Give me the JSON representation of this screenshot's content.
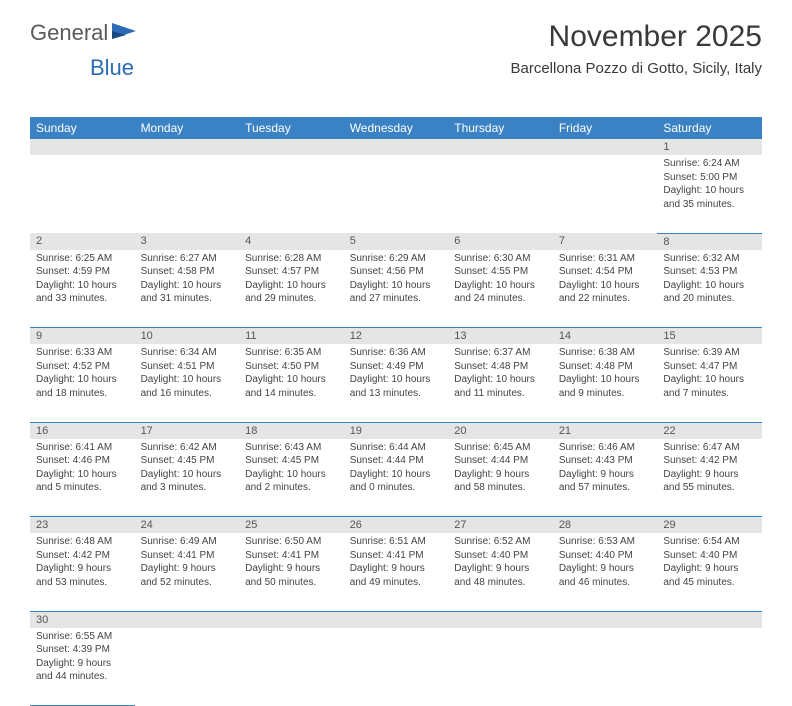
{
  "logo": {
    "text1": "General",
    "text2": "Blue"
  },
  "title": "November 2025",
  "location": "Barcellona Pozzo di Gotto, Sicily, Italy",
  "colors": {
    "header_bg": "#3b82c4",
    "header_text": "#ffffff",
    "daynum_bg": "#e5e5e5",
    "cell_border": "#3b82c4",
    "logo_gray": "#5a5a5a",
    "logo_blue": "#2d6bb5"
  },
  "day_headers": [
    "Sunday",
    "Monday",
    "Tuesday",
    "Wednesday",
    "Thursday",
    "Friday",
    "Saturday"
  ],
  "weeks": [
    [
      null,
      null,
      null,
      null,
      null,
      null,
      {
        "n": "1",
        "sunrise": "6:24 AM",
        "sunset": "5:00 PM",
        "daylight": "10 hours and 35 minutes."
      }
    ],
    [
      {
        "n": "2",
        "sunrise": "6:25 AM",
        "sunset": "4:59 PM",
        "daylight": "10 hours and 33 minutes."
      },
      {
        "n": "3",
        "sunrise": "6:27 AM",
        "sunset": "4:58 PM",
        "daylight": "10 hours and 31 minutes."
      },
      {
        "n": "4",
        "sunrise": "6:28 AM",
        "sunset": "4:57 PM",
        "daylight": "10 hours and 29 minutes."
      },
      {
        "n": "5",
        "sunrise": "6:29 AM",
        "sunset": "4:56 PM",
        "daylight": "10 hours and 27 minutes."
      },
      {
        "n": "6",
        "sunrise": "6:30 AM",
        "sunset": "4:55 PM",
        "daylight": "10 hours and 24 minutes."
      },
      {
        "n": "7",
        "sunrise": "6:31 AM",
        "sunset": "4:54 PM",
        "daylight": "10 hours and 22 minutes."
      },
      {
        "n": "8",
        "sunrise": "6:32 AM",
        "sunset": "4:53 PM",
        "daylight": "10 hours and 20 minutes."
      }
    ],
    [
      {
        "n": "9",
        "sunrise": "6:33 AM",
        "sunset": "4:52 PM",
        "daylight": "10 hours and 18 minutes."
      },
      {
        "n": "10",
        "sunrise": "6:34 AM",
        "sunset": "4:51 PM",
        "daylight": "10 hours and 16 minutes."
      },
      {
        "n": "11",
        "sunrise": "6:35 AM",
        "sunset": "4:50 PM",
        "daylight": "10 hours and 14 minutes."
      },
      {
        "n": "12",
        "sunrise": "6:36 AM",
        "sunset": "4:49 PM",
        "daylight": "10 hours and 13 minutes."
      },
      {
        "n": "13",
        "sunrise": "6:37 AM",
        "sunset": "4:48 PM",
        "daylight": "10 hours and 11 minutes."
      },
      {
        "n": "14",
        "sunrise": "6:38 AM",
        "sunset": "4:48 PM",
        "daylight": "10 hours and 9 minutes."
      },
      {
        "n": "15",
        "sunrise": "6:39 AM",
        "sunset": "4:47 PM",
        "daylight": "10 hours and 7 minutes."
      }
    ],
    [
      {
        "n": "16",
        "sunrise": "6:41 AM",
        "sunset": "4:46 PM",
        "daylight": "10 hours and 5 minutes."
      },
      {
        "n": "17",
        "sunrise": "6:42 AM",
        "sunset": "4:45 PM",
        "daylight": "10 hours and 3 minutes."
      },
      {
        "n": "18",
        "sunrise": "6:43 AM",
        "sunset": "4:45 PM",
        "daylight": "10 hours and 2 minutes."
      },
      {
        "n": "19",
        "sunrise": "6:44 AM",
        "sunset": "4:44 PM",
        "daylight": "10 hours and 0 minutes."
      },
      {
        "n": "20",
        "sunrise": "6:45 AM",
        "sunset": "4:44 PM",
        "daylight": "9 hours and 58 minutes."
      },
      {
        "n": "21",
        "sunrise": "6:46 AM",
        "sunset": "4:43 PM",
        "daylight": "9 hours and 57 minutes."
      },
      {
        "n": "22",
        "sunrise": "6:47 AM",
        "sunset": "4:42 PM",
        "daylight": "9 hours and 55 minutes."
      }
    ],
    [
      {
        "n": "23",
        "sunrise": "6:48 AM",
        "sunset": "4:42 PM",
        "daylight": "9 hours and 53 minutes."
      },
      {
        "n": "24",
        "sunrise": "6:49 AM",
        "sunset": "4:41 PM",
        "daylight": "9 hours and 52 minutes."
      },
      {
        "n": "25",
        "sunrise": "6:50 AM",
        "sunset": "4:41 PM",
        "daylight": "9 hours and 50 minutes."
      },
      {
        "n": "26",
        "sunrise": "6:51 AM",
        "sunset": "4:41 PM",
        "daylight": "9 hours and 49 minutes."
      },
      {
        "n": "27",
        "sunrise": "6:52 AM",
        "sunset": "4:40 PM",
        "daylight": "9 hours and 48 minutes."
      },
      {
        "n": "28",
        "sunrise": "6:53 AM",
        "sunset": "4:40 PM",
        "daylight": "9 hours and 46 minutes."
      },
      {
        "n": "29",
        "sunrise": "6:54 AM",
        "sunset": "4:40 PM",
        "daylight": "9 hours and 45 minutes."
      }
    ],
    [
      {
        "n": "30",
        "sunrise": "6:55 AM",
        "sunset": "4:39 PM",
        "daylight": "9 hours and 44 minutes."
      },
      null,
      null,
      null,
      null,
      null,
      null
    ]
  ],
  "labels": {
    "sunrise": "Sunrise: ",
    "sunset": "Sunset: ",
    "daylight": "Daylight: "
  }
}
